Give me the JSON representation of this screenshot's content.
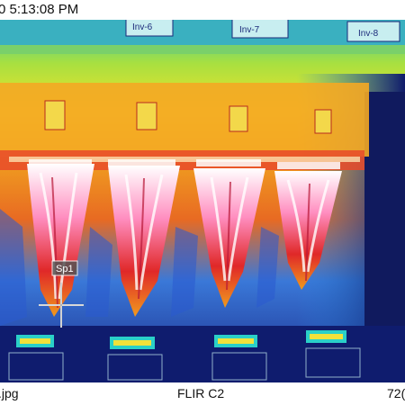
{
  "header": {
    "timestamp": "0 5:13:08 PM"
  },
  "image": {
    "cabinet_labels": [
      "Inv-6",
      "Inv-7",
      "Inv-8"
    ],
    "spot_marker": {
      "label": "Sp1"
    },
    "palette": [
      "#0a0f5a",
      "#1e5adf",
      "#18c8d8",
      "#39d84a",
      "#e6f02a",
      "#f6a21a",
      "#ea2a1e",
      "#ff6fb0",
      "#ffffff"
    ]
  },
  "footer": {
    "filename": ".jpg",
    "camera_model": "FLIR C2",
    "resolution": "72("
  }
}
